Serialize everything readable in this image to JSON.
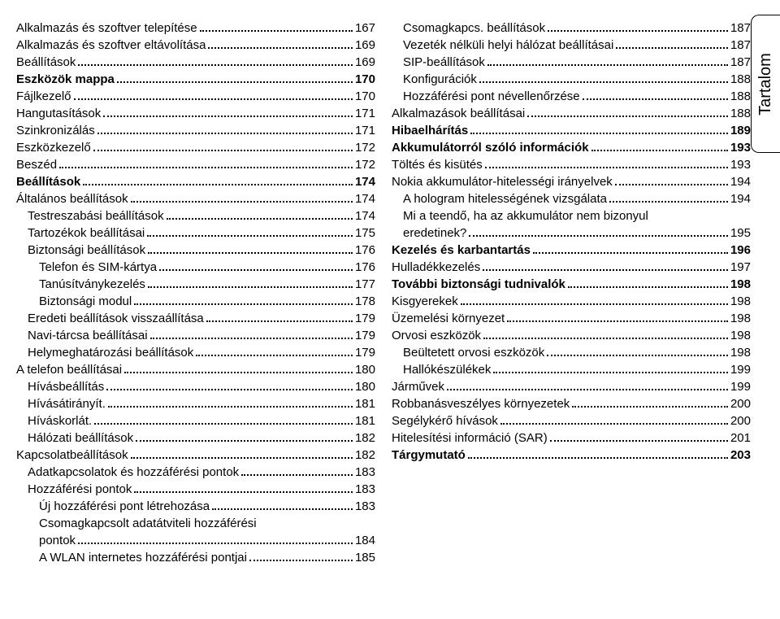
{
  "side_label": "Tartalom",
  "left": [
    {
      "label": "Alkalmazás és szoftver telepítése",
      "page": "167",
      "indent": 0,
      "bold": false
    },
    {
      "label": "Alkalmazás és szoftver eltávolítása",
      "page": "169",
      "indent": 0,
      "bold": false
    },
    {
      "label": "Beállítások",
      "page": "169",
      "indent": 0,
      "bold": false
    },
    {
      "label": "Eszközök mappa",
      "page": "170",
      "indent": 0,
      "bold": true
    },
    {
      "label": "Fájlkezelő",
      "page": "170",
      "indent": 0,
      "bold": false
    },
    {
      "label": "Hangutasítások",
      "page": "171",
      "indent": 0,
      "bold": false
    },
    {
      "label": "Szinkronizálás",
      "page": "171",
      "indent": 0,
      "bold": false
    },
    {
      "label": "Eszközkezelő",
      "page": "172",
      "indent": 0,
      "bold": false
    },
    {
      "label": "Beszéd",
      "page": "172",
      "indent": 0,
      "bold": false
    },
    {
      "label": "Beállítások",
      "page": "174",
      "indent": 0,
      "bold": true
    },
    {
      "label": "Általános beállítások",
      "page": "174",
      "indent": 0,
      "bold": false
    },
    {
      "label": "Testreszabási beállítások",
      "page": "174",
      "indent": 1,
      "bold": false
    },
    {
      "label": "Tartozékok beállításai",
      "page": "175",
      "indent": 1,
      "bold": false
    },
    {
      "label": "Biztonsági beállítások",
      "page": "176",
      "indent": 1,
      "bold": false
    },
    {
      "label": "Telefon és SIM-kártya",
      "page": "176",
      "indent": 2,
      "bold": false
    },
    {
      "label": "Tanúsítványkezelés",
      "page": "177",
      "indent": 2,
      "bold": false
    },
    {
      "label": "Biztonsági modul",
      "page": "178",
      "indent": 2,
      "bold": false
    },
    {
      "label": "Eredeti beállítások visszaállítása",
      "page": "179",
      "indent": 1,
      "bold": false
    },
    {
      "label": "Navi-tárcsa beállításai",
      "page": "179",
      "indent": 1,
      "bold": false
    },
    {
      "label": "Helymeghatározási beállítások",
      "page": "179",
      "indent": 1,
      "bold": false
    },
    {
      "label": "A telefon beállításai",
      "page": "180",
      "indent": 0,
      "bold": false
    },
    {
      "label": "Hívásbeállítás",
      "page": "180",
      "indent": 1,
      "bold": false
    },
    {
      "label": "Hívásátirányít.",
      "page": "181",
      "indent": 1,
      "bold": false
    },
    {
      "label": "Híváskorlát.",
      "page": "181",
      "indent": 1,
      "bold": false
    },
    {
      "label": "Hálózati beállítások",
      "page": "182",
      "indent": 1,
      "bold": false
    },
    {
      "label": "Kapcsolatbeállítások",
      "page": "182",
      "indent": 0,
      "bold": false
    },
    {
      "label": "Adatkapcsolatok és hozzáférési pontok",
      "page": "183",
      "indent": 1,
      "bold": false
    },
    {
      "label": "Hozzáférési pontok",
      "page": "183",
      "indent": 1,
      "bold": false
    },
    {
      "label": "Új hozzáférési pont létrehozása",
      "page": "183",
      "indent": 2,
      "bold": false
    },
    {
      "label": "Csomagkapcsolt adatátviteli hozzáférési",
      "page": "",
      "indent": 2,
      "bold": false,
      "nowrap_dots": true
    },
    {
      "label": "pontok",
      "page": "184",
      "indent": 2,
      "bold": false
    },
    {
      "label": "A WLAN internetes hozzáférési pontjai",
      "page": "185",
      "indent": 2,
      "bold": false
    }
  ],
  "right": [
    {
      "label": "Csomagkapcs. beállítások",
      "page": "187",
      "indent": 1,
      "bold": false
    },
    {
      "label": "Vezeték nélküli helyi hálózat beállításai",
      "page": "187",
      "indent": 1,
      "bold": false
    },
    {
      "label": "SIP-beállítások",
      "page": "187",
      "indent": 1,
      "bold": false
    },
    {
      "label": "Konfigurációk",
      "page": "188",
      "indent": 1,
      "bold": false
    },
    {
      "label": "Hozzáférési pont névellenőrzése",
      "page": "188",
      "indent": 1,
      "bold": false
    },
    {
      "label": "Alkalmazások beállításai",
      "page": "188",
      "indent": 0,
      "bold": false
    },
    {
      "label": "Hibaelhárítás",
      "page": "189",
      "indent": 0,
      "bold": true
    },
    {
      "label": "Akkumulátorról szóló információk",
      "page": "193",
      "indent": 0,
      "bold": true
    },
    {
      "label": "Töltés és kisütés",
      "page": "193",
      "indent": 0,
      "bold": false
    },
    {
      "label": "Nokia akkumulátor-hitelességi irányelvek",
      "page": "194",
      "indent": 0,
      "bold": false
    },
    {
      "label": "A hologram hitelességének vizsgálata",
      "page": "194",
      "indent": 1,
      "bold": false
    },
    {
      "label": "Mi a teendő, ha az akkumulátor nem bizonyul",
      "page": "",
      "indent": 1,
      "bold": false,
      "nowrap_dots": true
    },
    {
      "label": "eredetinek?",
      "page": "195",
      "indent": 1,
      "bold": false
    },
    {
      "label": "Kezelés és karbantartás",
      "page": "196",
      "indent": 0,
      "bold": true
    },
    {
      "label": "Hulladékkezelés",
      "page": "197",
      "indent": 0,
      "bold": false
    },
    {
      "label": "További biztonsági tudnivalók",
      "page": "198",
      "indent": 0,
      "bold": true
    },
    {
      "label": "Kisgyerekek",
      "page": "198",
      "indent": 0,
      "bold": false
    },
    {
      "label": "Üzemelési környezet",
      "page": "198",
      "indent": 0,
      "bold": false
    },
    {
      "label": "Orvosi eszközök",
      "page": "198",
      "indent": 0,
      "bold": false
    },
    {
      "label": "Beültetett orvosi eszközök",
      "page": "198",
      "indent": 1,
      "bold": false
    },
    {
      "label": "Hallókészülékek",
      "page": "199",
      "indent": 1,
      "bold": false
    },
    {
      "label": "Járművek",
      "page": "199",
      "indent": 0,
      "bold": false
    },
    {
      "label": "Robbanásveszélyes környezetek",
      "page": "200",
      "indent": 0,
      "bold": false
    },
    {
      "label": "Segélykérő hívások",
      "page": "200",
      "indent": 0,
      "bold": false
    },
    {
      "label": "Hitelesítési információ (SAR)",
      "page": "201",
      "indent": 0,
      "bold": false
    },
    {
      "label": "Tárgymutató",
      "page": "203",
      "indent": 0,
      "bold": true
    }
  ]
}
